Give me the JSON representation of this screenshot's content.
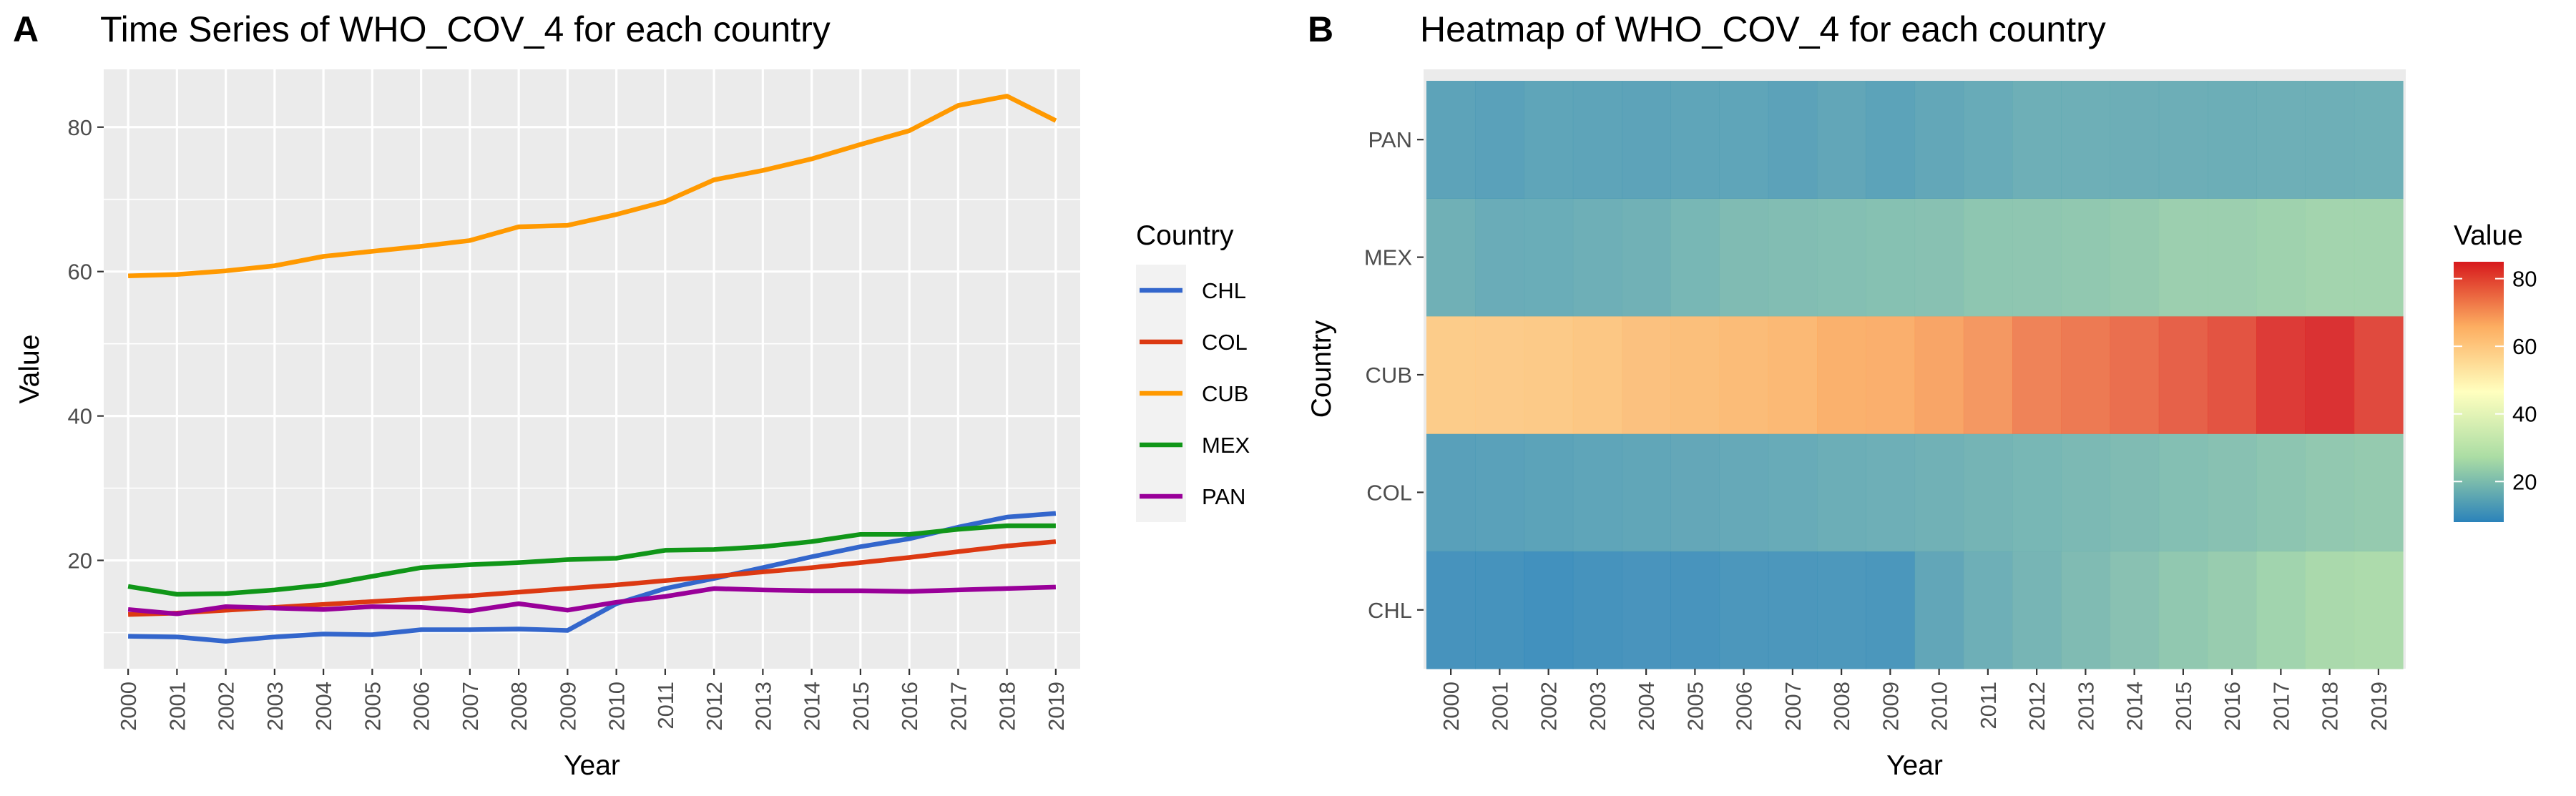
{
  "chart_data": [
    {
      "panel_tag": "A",
      "type": "line",
      "title": "Time Series of WHO_COV_4 for each country",
      "xlabel": "Year",
      "ylabel": "Value",
      "x": [
        "2000",
        "2001",
        "2002",
        "2003",
        "2004",
        "2005",
        "2006",
        "2007",
        "2008",
        "2009",
        "2010",
        "2011",
        "2012",
        "2013",
        "2014",
        "2015",
        "2016",
        "2017",
        "2018",
        "2019"
      ],
      "ylim": [
        5,
        88
      ],
      "yticks": [
        20,
        40,
        60,
        80
      ],
      "grid": true,
      "legend_title": "Country",
      "legend_position": "right",
      "series": [
        {
          "name": "CHL",
          "color": "#3366CC",
          "values": [
            9.5,
            9.4,
            8.8,
            9.4,
            9.8,
            9.7,
            10.4,
            10.4,
            10.5,
            10.3,
            14.0,
            16.1,
            17.5,
            19.0,
            20.5,
            21.9,
            23.0,
            24.6,
            26.0,
            26.5
          ]
        },
        {
          "name": "COL",
          "color": "#DC3912",
          "values": [
            12.5,
            12.7,
            13.1,
            13.5,
            13.9,
            14.3,
            14.7,
            15.1,
            15.6,
            16.1,
            16.6,
            17.2,
            17.8,
            18.4,
            19.0,
            19.7,
            20.4,
            21.2,
            22.0,
            22.6
          ]
        },
        {
          "name": "CUB",
          "color": "#FF9900",
          "values": [
            59.4,
            59.6,
            60.1,
            60.8,
            62.1,
            62.8,
            63.5,
            64.3,
            66.2,
            66.4,
            67.9,
            69.7,
            72.7,
            74.0,
            75.6,
            77.6,
            79.5,
            83.0,
            84.3,
            80.9
          ]
        },
        {
          "name": "MEX",
          "color": "#109618",
          "values": [
            16.4,
            15.3,
            15.4,
            15.9,
            16.6,
            17.8,
            19.0,
            19.4,
            19.7,
            20.1,
            20.3,
            21.4,
            21.5,
            21.9,
            22.6,
            23.6,
            23.6,
            24.3,
            24.8,
            24.8
          ]
        },
        {
          "name": "PAN",
          "color": "#990099",
          "values": [
            13.2,
            12.6,
            13.6,
            13.4,
            13.2,
            13.6,
            13.5,
            13.0,
            14.0,
            13.1,
            14.2,
            15.0,
            16.1,
            15.9,
            15.8,
            15.8,
            15.7,
            15.9,
            16.1,
            16.3
          ]
        }
      ]
    },
    {
      "panel_tag": "B",
      "type": "heatmap",
      "title": "Heatmap of WHO_COV_4 for each country",
      "xlabel": "Year",
      "ylabel": "Country",
      "x": [
        "2000",
        "2001",
        "2002",
        "2003",
        "2004",
        "2005",
        "2006",
        "2007",
        "2008",
        "2009",
        "2010",
        "2011",
        "2012",
        "2013",
        "2014",
        "2015",
        "2016",
        "2017",
        "2018",
        "2019"
      ],
      "y": [
        "CHL",
        "COL",
        "CUB",
        "MEX",
        "PAN"
      ],
      "values": [
        [
          9.5,
          9.4,
          8.8,
          9.4,
          9.8,
          9.7,
          10.4,
          10.4,
          10.5,
          10.3,
          14.0,
          16.1,
          17.5,
          19.0,
          20.5,
          21.9,
          23.0,
          24.6,
          26.0,
          26.5
        ],
        [
          12.5,
          12.7,
          13.1,
          13.5,
          13.9,
          14.3,
          14.7,
          15.1,
          15.6,
          16.1,
          16.6,
          17.2,
          17.8,
          18.4,
          19.0,
          19.7,
          20.4,
          21.2,
          22.0,
          22.6
        ],
        [
          59.4,
          59.6,
          60.1,
          60.8,
          62.1,
          62.8,
          63.5,
          64.3,
          66.2,
          66.4,
          67.9,
          69.7,
          72.7,
          74.0,
          75.6,
          77.6,
          79.5,
          83.0,
          84.3,
          80.9
        ],
        [
          16.4,
          15.3,
          15.4,
          15.9,
          16.6,
          17.8,
          19.0,
          19.4,
          19.7,
          20.1,
          20.3,
          21.4,
          21.5,
          21.9,
          22.6,
          23.6,
          23.6,
          24.3,
          24.8,
          24.8
        ],
        [
          13.2,
          12.6,
          13.6,
          13.4,
          13.2,
          13.6,
          13.5,
          13.0,
          14.0,
          13.1,
          14.2,
          15.0,
          16.1,
          15.9,
          15.8,
          15.8,
          15.7,
          15.9,
          16.1,
          16.3
        ]
      ],
      "colorbar_title": "Value",
      "colorbar_range": [
        8,
        85
      ],
      "colorbar_ticks": [
        20,
        40,
        60,
        80
      ],
      "colormap": [
        "#2B83BA",
        "#ABDDA4",
        "#FFFFBF",
        "#FDAE61",
        "#D7191C"
      ],
      "legend_position": "right"
    }
  ]
}
